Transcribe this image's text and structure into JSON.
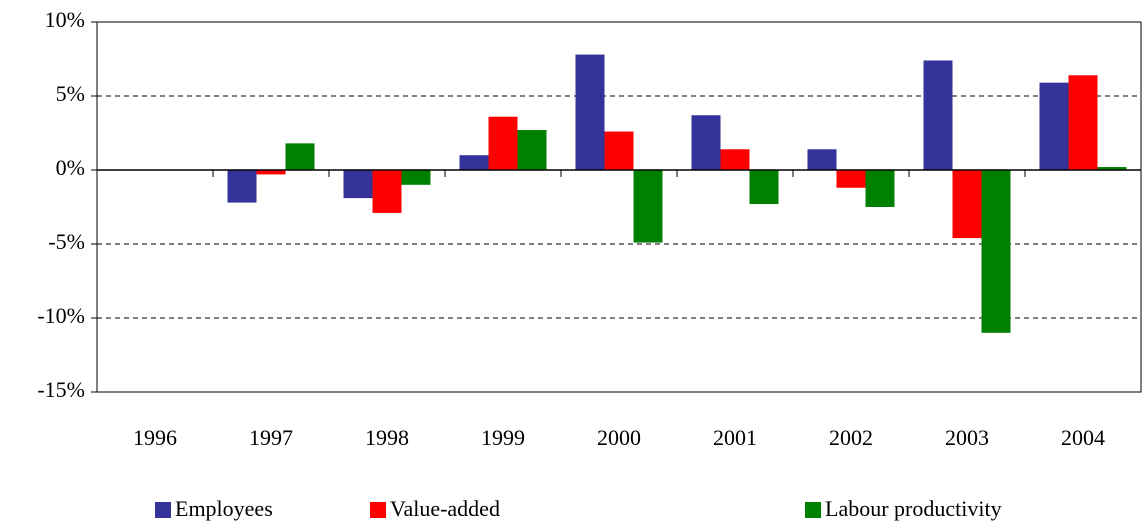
{
  "chart_data": {
    "type": "bar",
    "categories": [
      "1996",
      "1997",
      "1998",
      "1999",
      "2000",
      "2001",
      "2002",
      "2003",
      "2004"
    ],
    "series": [
      {
        "name": "Employees",
        "color": "#333399",
        "values": [
          null,
          -2.2,
          -1.9,
          1.0,
          7.8,
          3.7,
          1.4,
          7.4,
          5.9
        ]
      },
      {
        "name": "Value-added",
        "color": "#ff0000",
        "values": [
          null,
          -0.3,
          -2.9,
          3.6,
          2.6,
          1.4,
          -1.2,
          -4.6,
          6.4
        ]
      },
      {
        "name": "Labour productivity",
        "color": "#008000",
        "values": [
          null,
          1.8,
          -1.0,
          2.7,
          -4.9,
          -2.3,
          -2.5,
          -11.0,
          0.2
        ]
      }
    ],
    "ylim": [
      -15,
      10
    ],
    "yticks": [
      {
        "value": -15,
        "label": "-15%"
      },
      {
        "value": -10,
        "label": "-10%"
      },
      {
        "value": -5,
        "label": "-5%"
      },
      {
        "value": 0,
        "label": "0%"
      },
      {
        "value": 5,
        "label": "5%"
      },
      {
        "value": 10,
        "label": "10%"
      }
    ],
    "grid": true,
    "legend": "bottom"
  }
}
